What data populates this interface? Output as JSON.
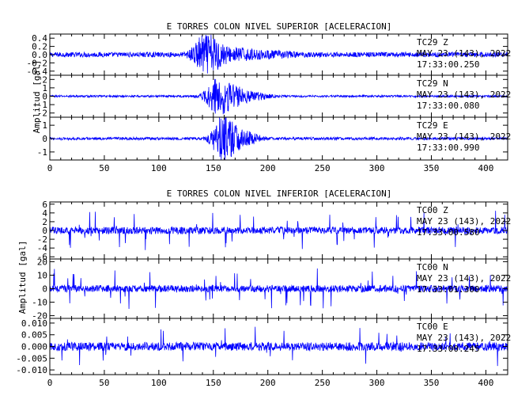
{
  "chart_data": [
    {
      "type": "line",
      "title": "E TORRES COLON NIVEL SUPERIOR [ACELERACION]",
      "ylabel": "Amplitud  [gal]",
      "xlim": [
        0,
        420
      ],
      "x_ticks": [
        "0",
        "50",
        "100",
        "150",
        "200",
        "250",
        "300",
        "350",
        "400"
      ],
      "series": [
        {
          "name": "TC29  Z",
          "date": "MAY 23 (143), 2022",
          "time": "17:33:00.250",
          "ylim": [
            -0.5,
            0.5
          ],
          "y_ticks": [
            "0.4",
            "0.2",
            "0.0",
            "-0.2",
            "-0.4"
          ],
          "noise_amplitude": 0.06,
          "events": [
            {
              "x": 138,
              "width": 8,
              "amplitude": 0.3
            },
            {
              "x": 150,
              "width": 10,
              "amplitude": 0.38
            },
            {
              "x": 172,
              "width": 16,
              "amplitude": 0.12
            },
            {
              "x": 205,
              "width": 20,
              "amplitude": 0.05
            }
          ]
        },
        {
          "name": "TC29  N",
          "date": "MAY 23 (143), 2022",
          "time": "17:33:00.080",
          "ylim": [
            -2.5,
            2.5
          ],
          "y_ticks": [
            "2",
            "1",
            "0",
            "-1",
            "-2"
          ],
          "noise_amplitude": 0.12,
          "events": [
            {
              "x": 152,
              "width": 10,
              "amplitude": 1.6
            },
            {
              "x": 165,
              "width": 12,
              "amplitude": 1.3
            },
            {
              "x": 185,
              "width": 16,
              "amplitude": 0.5
            }
          ]
        },
        {
          "name": "TC29  E",
          "date": "MAY 23 (143), 2022",
          "time": "17:33:00.990",
          "ylim": [
            -1.6,
            1.6
          ],
          "y_ticks": [
            "1",
            "0",
            "-1"
          ],
          "noise_amplitude": 0.1,
          "events": [
            {
              "x": 155,
              "width": 8,
              "amplitude": 0.9
            },
            {
              "x": 163,
              "width": 9,
              "amplitude": 1.3
            },
            {
              "x": 178,
              "width": 14,
              "amplitude": 0.5
            }
          ]
        }
      ]
    },
    {
      "type": "line",
      "title": "E TORRES COLON NIVEL INFERIOR [ACELERACION]",
      "ylabel": "Amplitud  [gal]",
      "xlim": [
        0,
        420
      ],
      "x_ticks": [
        "0",
        "50",
        "100",
        "150",
        "200",
        "250",
        "300",
        "350",
        "400"
      ],
      "series": [
        {
          "name": "TC00  Z",
          "date": "MAY 23 (143), 2022",
          "time": "17:33:00.580",
          "ylim": [
            -6.5,
            6.5
          ],
          "y_ticks": [
            "6",
            "4",
            "2",
            "0",
            "-2",
            "-4",
            "-6"
          ],
          "noise_amplitude": 0.8,
          "spike_amplitude": 4.5,
          "spike_density": 0.05,
          "events": []
        },
        {
          "name": "TC00  N",
          "date": "MAY 23 (143), 2022",
          "time": "17:33:01.300",
          "ylim": [
            -22,
            22
          ],
          "y_ticks": [
            "20",
            "10",
            "0",
            "-10",
            "-20"
          ],
          "noise_amplitude": 2.5,
          "spike_amplitude": 15,
          "spike_density": 0.05,
          "events": []
        },
        {
          "name": "TC00  E",
          "date": "MAY 23 (143), 2022",
          "time": "17:33:00.245",
          "ylim": [
            -0.012,
            0.012
          ],
          "y_ticks": [
            "0.010",
            "0.005",
            "0.000",
            "-0.005",
            "-0.010"
          ],
          "noise_amplitude": 0.0018,
          "spike_amplitude": 0.009,
          "spike_density": 0.03,
          "events": []
        }
      ]
    }
  ]
}
